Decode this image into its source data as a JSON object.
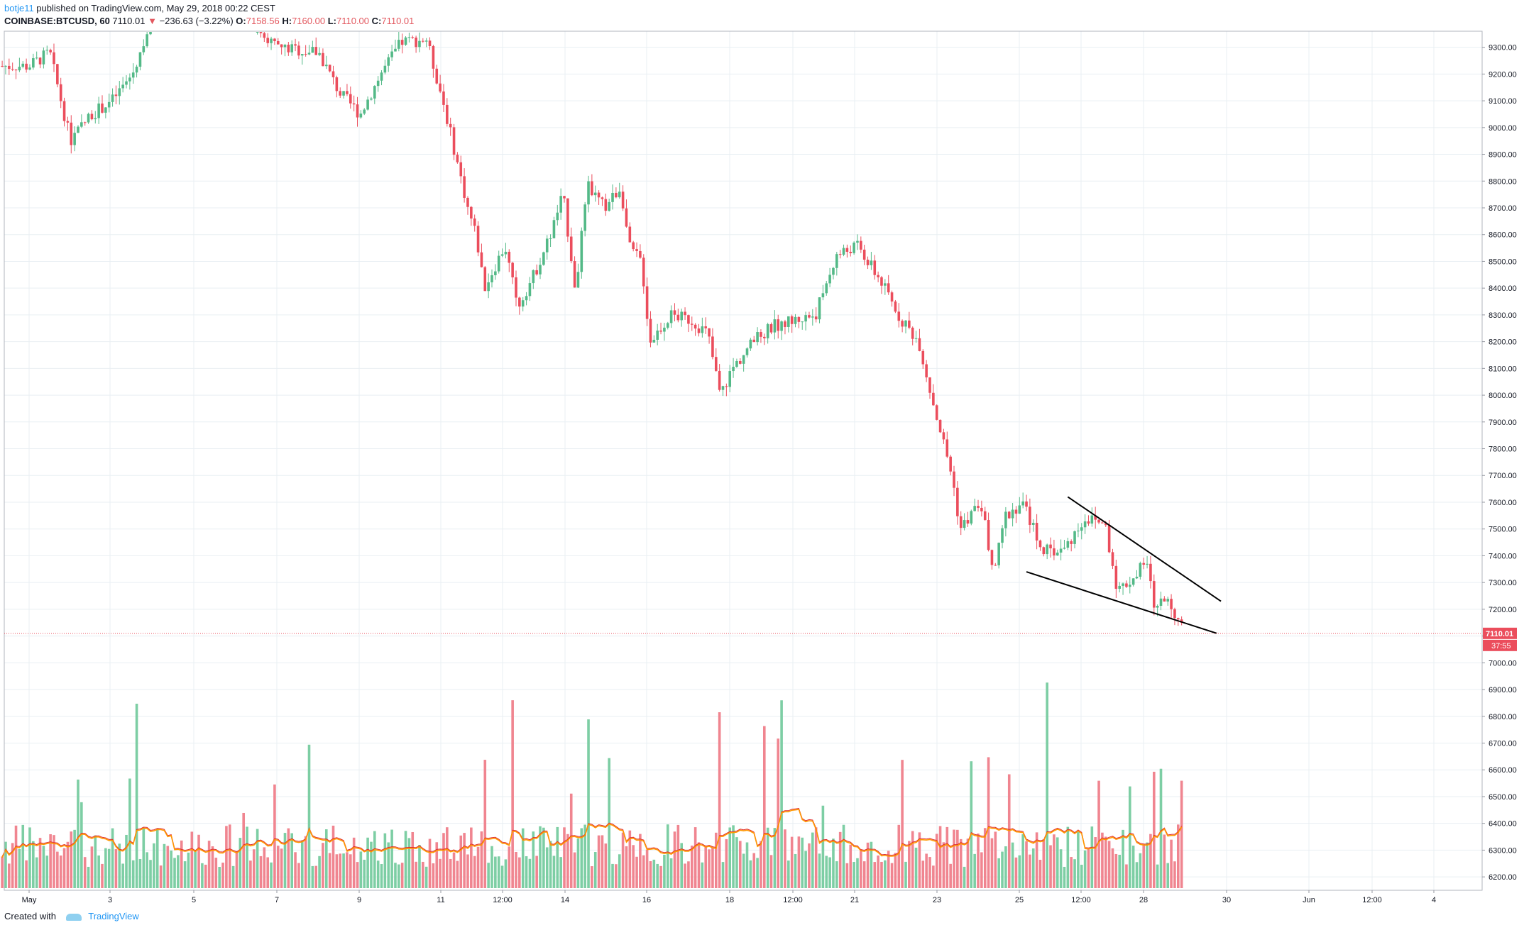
{
  "header": {
    "user": "botje11",
    "published": " published on TradingView.com, May 29, 2018 00:22 CEST",
    "symbol": "COINBASE:BTCUSD, 60",
    "last": "7110.01",
    "change": "−236.63 (−3.22%)",
    "o_label": "O:",
    "o": "7158.56",
    "h_label": "H:",
    "h": "7160.00",
    "l_label": "L:",
    "l": "7110.00",
    "c_label": "C:",
    "c": "7110.01"
  },
  "footer": {
    "created_with": "Created with",
    "brand": "TradingView"
  },
  "colors": {
    "up": "#53b987",
    "down": "#eb4d5c",
    "vol_up": "#7dcea4",
    "vol_down": "#f08590",
    "ma": "#ff9800",
    "ma_red": "#e02b2b",
    "grid": "#e9eff3",
    "price_tag": "#eb4d5c"
  },
  "chart_data": {
    "type": "candlestick",
    "symbol": "COINBASE:BTCUSD",
    "interval": "60",
    "ylim": [
      6150,
      9360
    ],
    "y_ticks": [
      "9300.00",
      "9200.00",
      "9100.00",
      "9000.00",
      "8900.00",
      "8800.00",
      "8700.00",
      "8600.00",
      "8500.00",
      "8400.00",
      "8300.00",
      "8200.00",
      "8100.00",
      "8000.00",
      "7900.00",
      "7800.00",
      "7700.00",
      "7600.00",
      "7500.00",
      "7400.00",
      "7300.00",
      "7200.00",
      "7100.00",
      "7000.00",
      "6900.00",
      "6800.00",
      "6700.00",
      "6600.00",
      "6500.00",
      "6400.00",
      "6300.00",
      "6200.00"
    ],
    "x_ticks": [
      "May",
      "3",
      "5",
      "7",
      "9",
      "11",
      "12:00",
      "14",
      "16",
      "18",
      "12:00",
      "21",
      "23",
      "25",
      "12:00",
      "28",
      "30",
      "Jun",
      "12:00",
      "4"
    ],
    "last_price": "7110.01",
    "countdown": "37:55",
    "price_path": [
      {
        "d": "May 1",
        "p": 9230
      },
      {
        "d": "May 1.5",
        "p": 9280
      },
      {
        "d": "May 2",
        "p": 8950
      },
      {
        "d": "May 2.5",
        "p": 9050
      },
      {
        "d": "May 3",
        "p": 9100
      },
      {
        "d": "May 3.5",
        "p": 9200
      },
      {
        "d": "May 4",
        "p": 9420
      },
      {
        "d": "May 5",
        "p": 9600
      },
      {
        "d": "May 7",
        "p": 9300
      },
      {
        "d": "May 8",
        "p": 9280
      },
      {
        "d": "May 8.5",
        "p": 9130
      },
      {
        "d": "May 9",
        "p": 9050
      },
      {
        "d": "May 9.5",
        "p": 9200
      },
      {
        "d": "May 10",
        "p": 9320
      },
      {
        "d": "May 10.6",
        "p": 9330
      },
      {
        "d": "May 11",
        "p": 9100
      },
      {
        "d": "May 11.3",
        "p": 8900
      },
      {
        "d": "May 11.6",
        "p": 8700
      },
      {
        "d": "May 11.8",
        "p": 8600
      },
      {
        "d": "May 12",
        "p": 8400
      },
      {
        "d": "May 12.5",
        "p": 8560
      },
      {
        "d": "May 12.8",
        "p": 8330
      },
      {
        "d": "May 13.2",
        "p": 8450
      },
      {
        "d": "May 13.6",
        "p": 8600
      },
      {
        "d": "May 13.9",
        "p": 8750
      },
      {
        "d": "May 14.2",
        "p": 8400
      },
      {
        "d": "May 14.5",
        "p": 8780
      },
      {
        "d": "May 14.9",
        "p": 8700
      },
      {
        "d": "May 15.3",
        "p": 8780
      },
      {
        "d": "May 15.5",
        "p": 8550
      },
      {
        "d": "May 15.8",
        "p": 8500
      },
      {
        "d": "May 16",
        "p": 8200
      },
      {
        "d": "May 16.5",
        "p": 8300
      },
      {
        "d": "May 17",
        "p": 8280
      },
      {
        "d": "May 17.4",
        "p": 8230
      },
      {
        "d": "May 17.7",
        "p": 8000
      },
      {
        "d": "May 18",
        "p": 8100
      },
      {
        "d": "May 18.5",
        "p": 8200
      },
      {
        "d": "May 19",
        "p": 8260
      },
      {
        "d": "May 19.5",
        "p": 8280
      },
      {
        "d": "May 20",
        "p": 8300
      },
      {
        "d": "May 20.5",
        "p": 8520
      },
      {
        "d": "May 21",
        "p": 8560
      },
      {
        "d": "May 21.6",
        "p": 8420
      },
      {
        "d": "May 22",
        "p": 8300
      },
      {
        "d": "May 22.5",
        "p": 8200
      },
      {
        "d": "May 22.8",
        "p": 8000
      },
      {
        "d": "May 23",
        "p": 7880
      },
      {
        "d": "May 23.3",
        "p": 7700
      },
      {
        "d": "May 23.5",
        "p": 7500
      },
      {
        "d": "May 24",
        "p": 7600
      },
      {
        "d": "May 24.3",
        "p": 7330
      },
      {
        "d": "May 24.6",
        "p": 7550
      },
      {
        "d": "May 25",
        "p": 7600
      },
      {
        "d": "May 25.5",
        "p": 7420
      },
      {
        "d": "May 26",
        "p": 7420
      },
      {
        "d": "May 26.5",
        "p": 7540
      },
      {
        "d": "May 27",
        "p": 7520
      },
      {
        "d": "May 27.3",
        "p": 7270
      },
      {
        "d": "May 27.7",
        "p": 7320
      },
      {
        "d": "May 28",
        "p": 7380
      },
      {
        "d": "May 28.2",
        "p": 7200
      },
      {
        "d": "May 28.5",
        "p": 7250
      },
      {
        "d": "May 28.9",
        "p": 7110
      }
    ],
    "trendlines": [
      {
        "name": "upper",
        "from": {
          "d": "May 26.1",
          "p": 7620
        },
        "to": {
          "d": "May 29.8",
          "p": 7230
        }
      },
      {
        "name": "lower",
        "from": {
          "d": "May 25.1",
          "p": 7340
        },
        "to": {
          "d": "May 29.7",
          "p": 7110
        }
      }
    ]
  }
}
